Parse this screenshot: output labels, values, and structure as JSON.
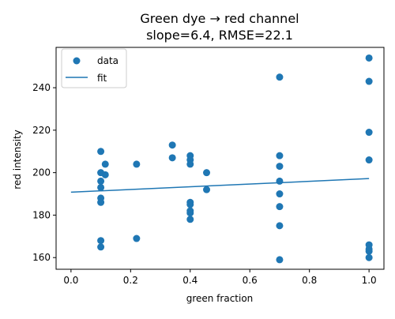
{
  "chart_data": {
    "type": "scatter",
    "title": "Green dye → red channel",
    "subtitle": "slope=6.4, RMSE=22.1",
    "xlabel": "green fraction",
    "ylabel": "red intensity",
    "xlim": [
      -0.05,
      1.05
    ],
    "ylim": [
      154.5,
      259
    ],
    "xticks": [
      0.0,
      0.2,
      0.4,
      0.6,
      0.8,
      1.0
    ],
    "xtick_labels": [
      "0.0",
      "0.2",
      "0.4",
      "0.6",
      "0.8",
      "1.0"
    ],
    "yticks": [
      160,
      180,
      200,
      220,
      240
    ],
    "ytick_labels": [
      "160",
      "180",
      "200",
      "220",
      "240"
    ],
    "grid": false,
    "legend": {
      "placement": "top-left",
      "entries": [
        "data",
        "fit"
      ]
    },
    "colors": {
      "points": "#1f77b4",
      "fit_line": "#1f77b4"
    },
    "series": [
      {
        "name": "data",
        "kind": "scatter",
        "points": [
          [
            0.1,
            210
          ],
          [
            0.1,
            200
          ],
          [
            0.1,
            196
          ],
          [
            0.1,
            193
          ],
          [
            0.1,
            188
          ],
          [
            0.1,
            186
          ],
          [
            0.1,
            168
          ],
          [
            0.1,
            165
          ],
          [
            0.115,
            204
          ],
          [
            0.115,
            199
          ],
          [
            0.22,
            204
          ],
          [
            0.22,
            169
          ],
          [
            0.34,
            213
          ],
          [
            0.34,
            207
          ],
          [
            0.4,
            208
          ],
          [
            0.4,
            206
          ],
          [
            0.4,
            204
          ],
          [
            0.4,
            186
          ],
          [
            0.4,
            185
          ],
          [
            0.4,
            182
          ],
          [
            0.4,
            181
          ],
          [
            0.4,
            178
          ],
          [
            0.455,
            200
          ],
          [
            0.455,
            192
          ],
          [
            0.7,
            245
          ],
          [
            0.7,
            208
          ],
          [
            0.7,
            203
          ],
          [
            0.7,
            196
          ],
          [
            0.7,
            190
          ],
          [
            0.7,
            184
          ],
          [
            0.7,
            175
          ],
          [
            0.7,
            159
          ],
          [
            1.0,
            254
          ],
          [
            1.0,
            243
          ],
          [
            1.0,
            219
          ],
          [
            1.0,
            206
          ],
          [
            1.0,
            166
          ],
          [
            1.0,
            164
          ],
          [
            1.0,
            163
          ],
          [
            1.0,
            160
          ]
        ]
      },
      {
        "name": "fit",
        "kind": "line",
        "points": [
          [
            0.0,
            190.8
          ],
          [
            1.0,
            197.2
          ]
        ]
      }
    ]
  }
}
